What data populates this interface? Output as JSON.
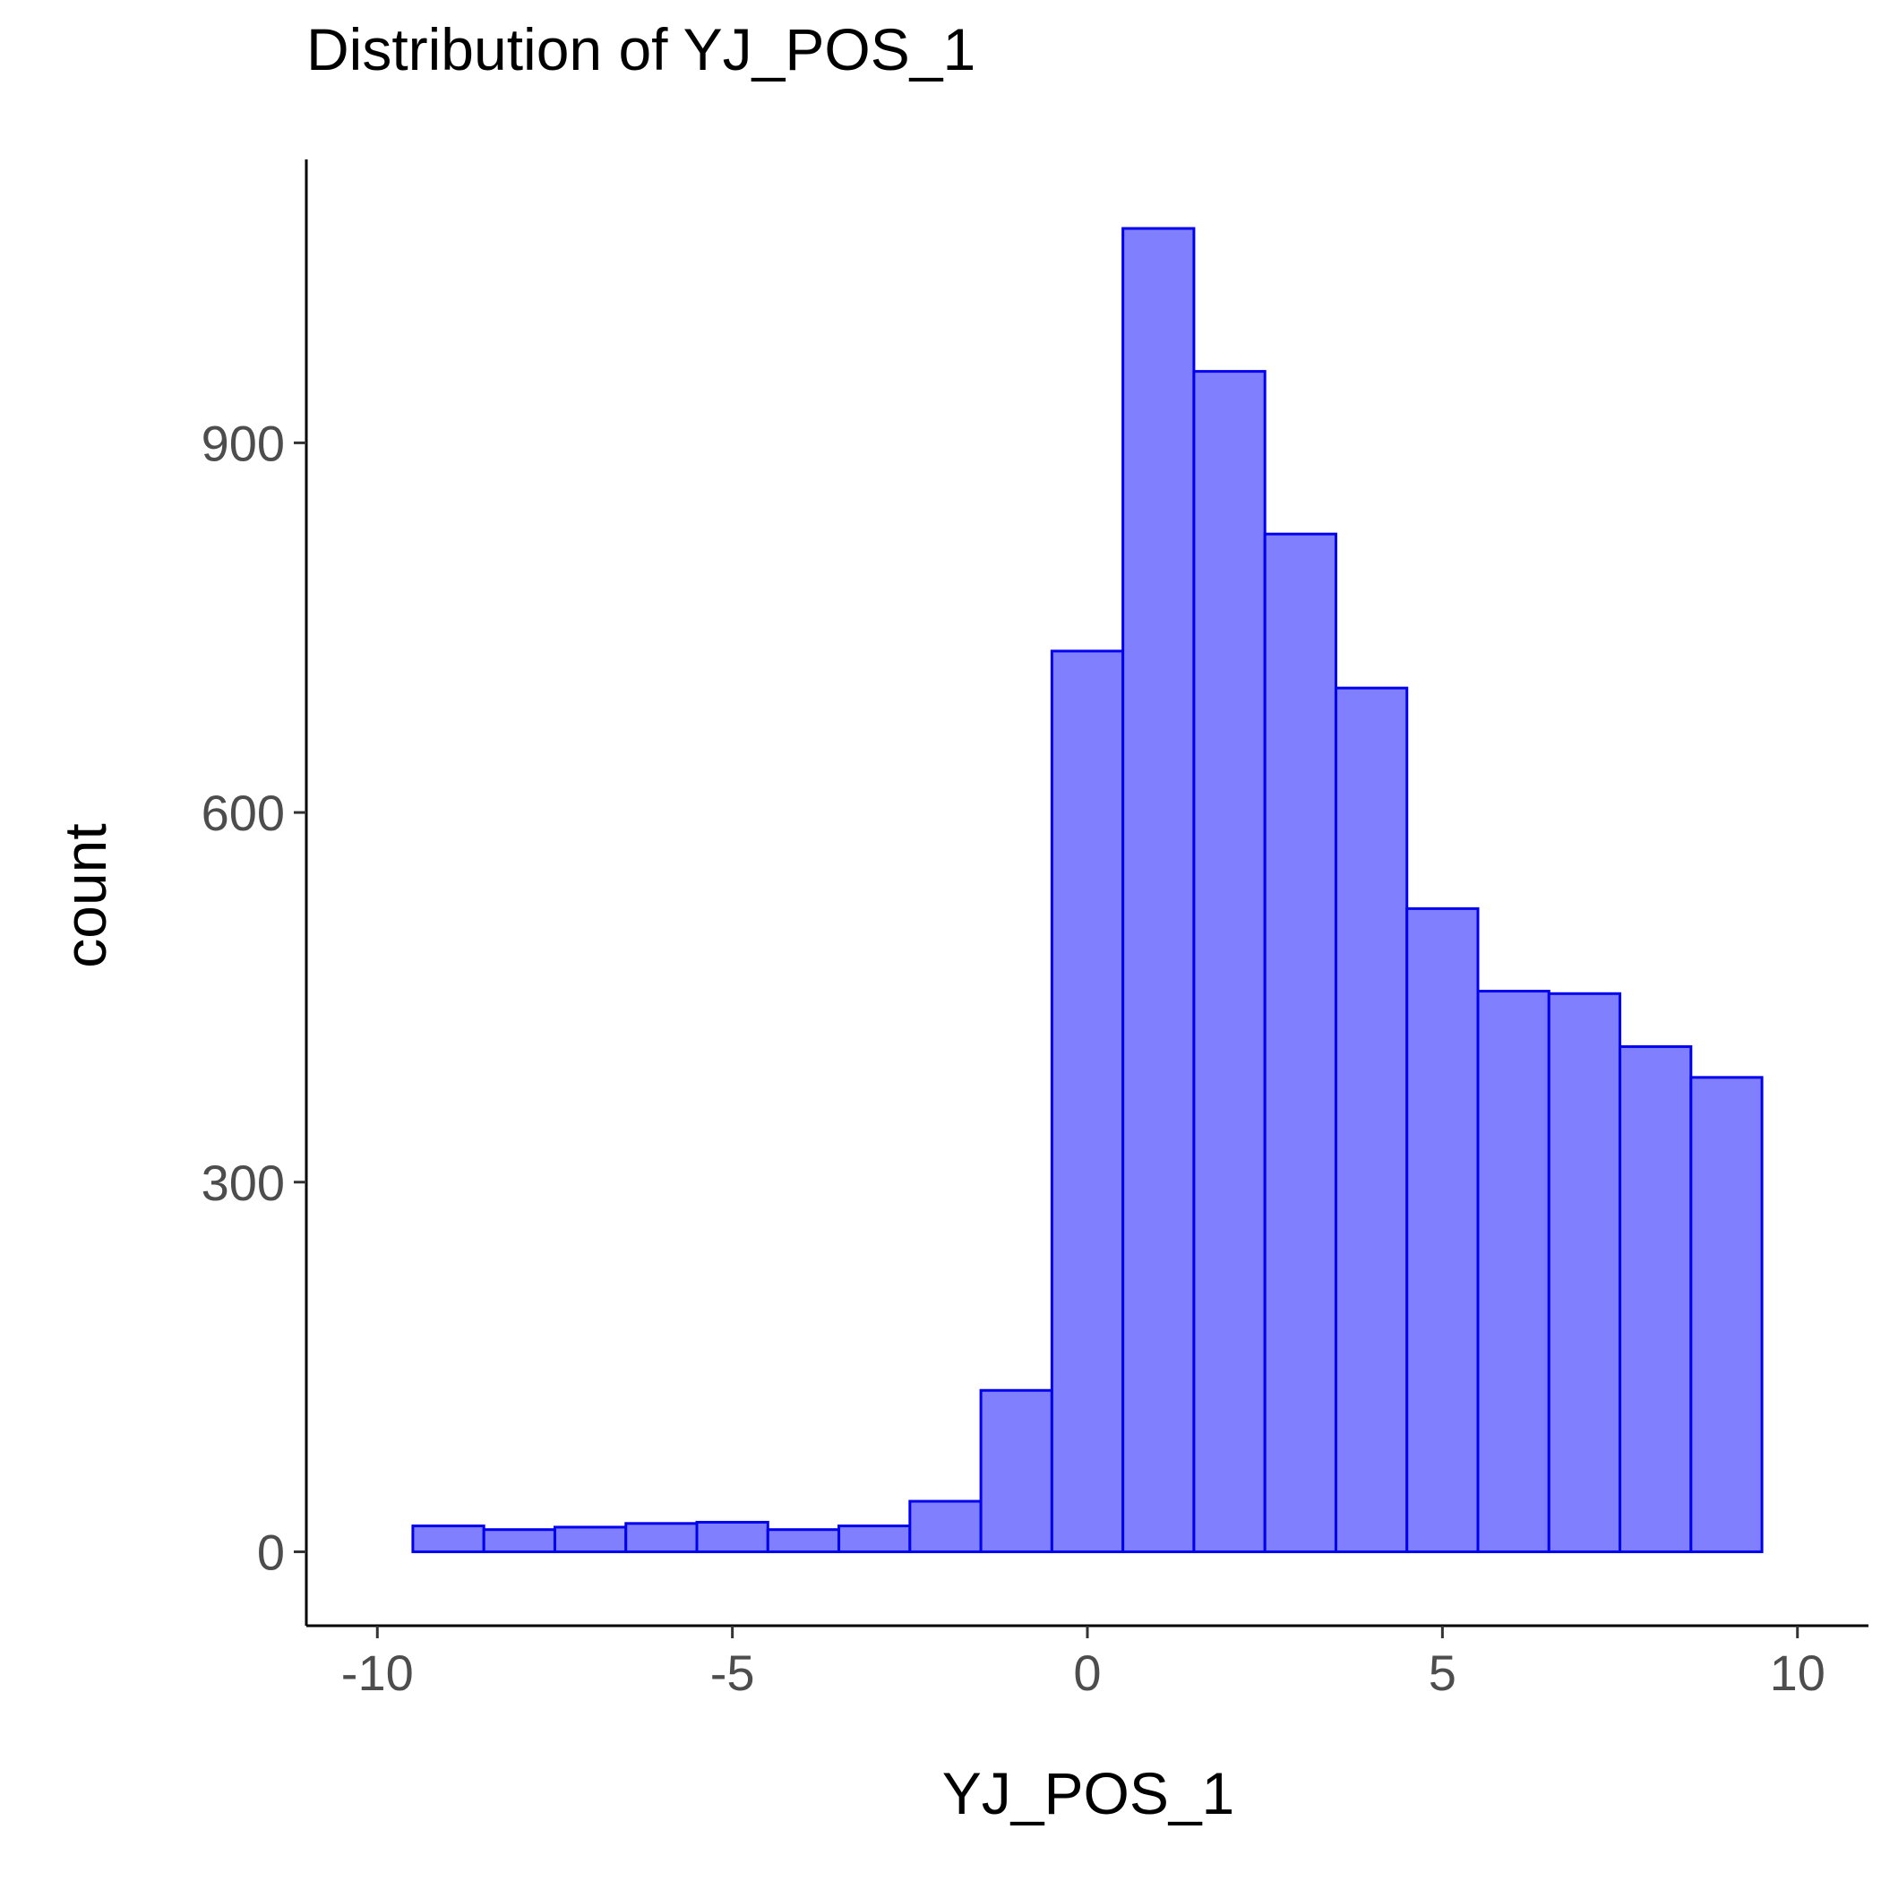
{
  "chart_data": {
    "type": "bar",
    "title": "Distribution of YJ_POS_1",
    "xlabel": "YJ_POS_1",
    "ylabel": "count",
    "xlim": [
      -11,
      11
    ],
    "ylim": [
      -60,
      1130
    ],
    "x_ticks": [
      -10,
      -5,
      0,
      5,
      10
    ],
    "x_tick_labels": [
      "-10",
      "-5",
      "0",
      "5",
      "10"
    ],
    "y_ticks": [
      0,
      300,
      600,
      900
    ],
    "y_tick_labels": [
      "0",
      "300",
      "600",
      "900"
    ],
    "bin_width": 1,
    "bin_centers": [
      -9,
      -8,
      -7,
      -6,
      -5,
      -4,
      -3,
      -2,
      -1,
      0,
      1,
      2,
      3,
      4,
      5,
      6,
      7,
      8,
      9
    ],
    "values": [
      21,
      18,
      20,
      23,
      24,
      18,
      21,
      41,
      131,
      731,
      1074,
      958,
      826,
      701,
      522,
      455,
      453,
      410,
      385
    ],
    "fill_color": "#8080ff",
    "stroke_color": "#0000ee",
    "grid": false,
    "legend": "none"
  }
}
